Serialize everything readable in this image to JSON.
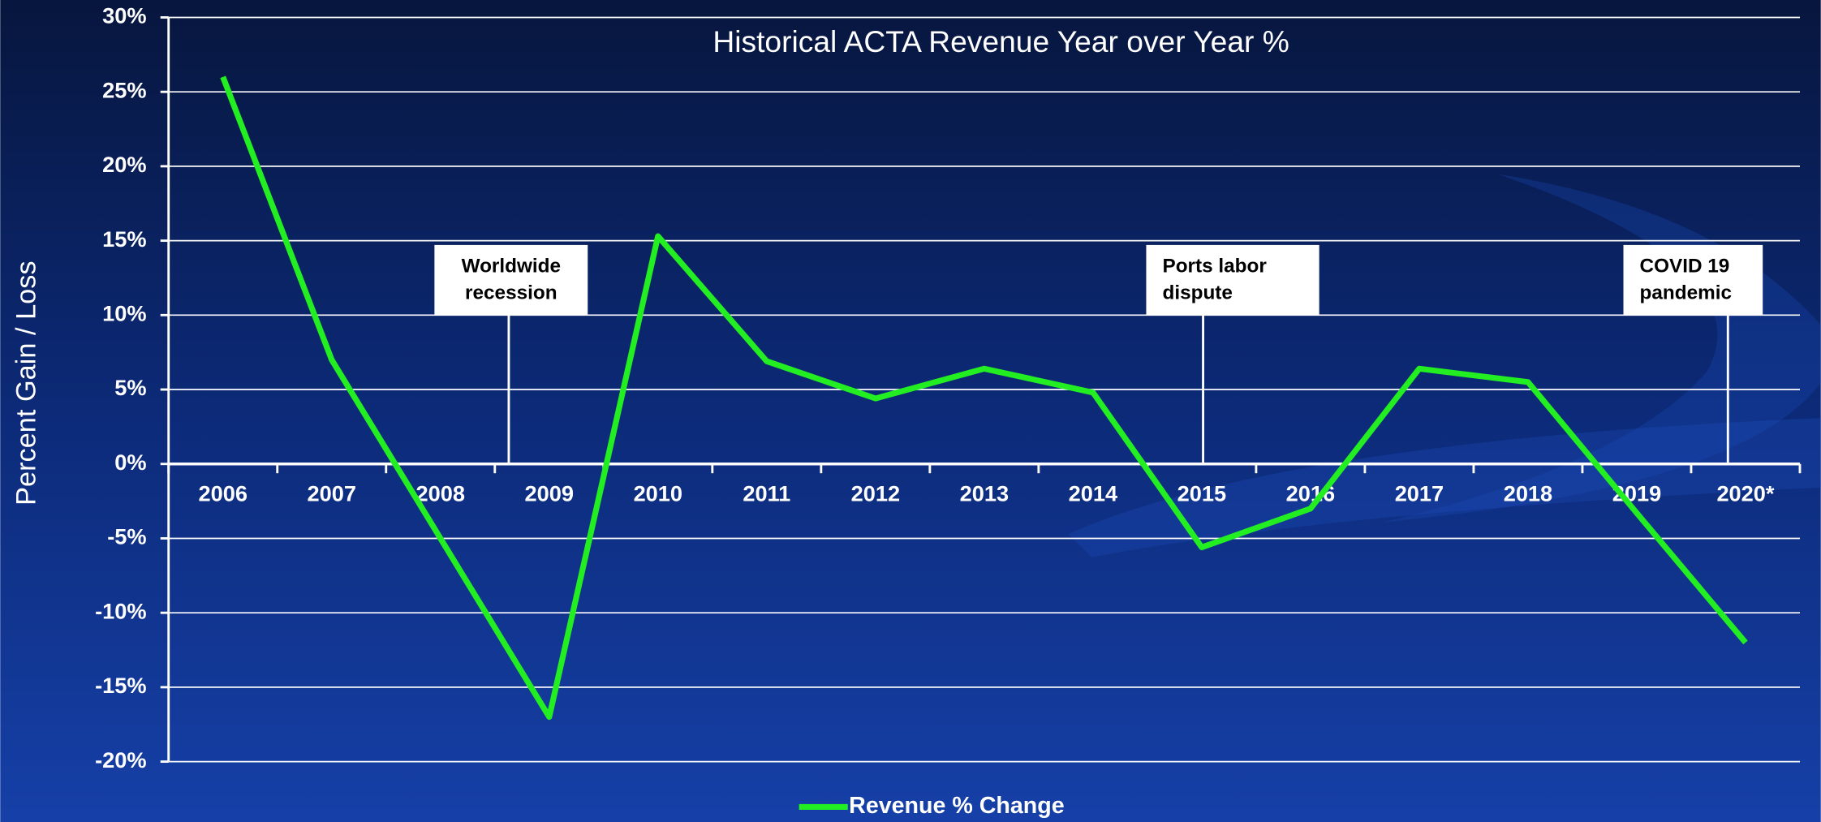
{
  "chart_data": {
    "type": "line",
    "title": "Historical ACTA Revenue Year over Year %",
    "y_label": "Percent Gain / Loss",
    "categories": [
      "2006",
      "2007",
      "2008",
      "2009",
      "2010",
      "2011",
      "2012",
      "2013",
      "2014",
      "2015",
      "2016",
      "2017",
      "2018",
      "2019",
      "2020*"
    ],
    "series": [
      {
        "name": "Revenue % Change",
        "color": "#22ee22",
        "values": [
          26,
          7,
          -5,
          -17,
          15.3,
          6.9,
          4.4,
          6.4,
          4.8,
          -5.6,
          -3,
          6.4,
          5.5,
          -3.3,
          -12
        ]
      }
    ],
    "ylim": [
      -20,
      30
    ],
    "yticks": [
      {
        "value": -20,
        "label": "-20%"
      },
      {
        "value": -15,
        "label": "-15%"
      },
      {
        "value": -10,
        "label": "-10%"
      },
      {
        "value": -5,
        "label": "-5%"
      },
      {
        "value": 0,
        "label": "0%"
      },
      {
        "value": 5,
        "label": "5%"
      },
      {
        "value": 10,
        "label": "10%"
      },
      {
        "value": 15,
        "label": "15%"
      },
      {
        "value": 20,
        "label": "20%"
      },
      {
        "value": 25,
        "label": "25%"
      },
      {
        "value": 30,
        "label": "30%"
      }
    ],
    "grid": true,
    "legend": "bottom",
    "annotations": [
      [
        "Worldwide",
        "recession"
      ],
      [
        "Ports labor",
        "dispute"
      ],
      [
        "COVID 19",
        "pandemic"
      ]
    ]
  }
}
